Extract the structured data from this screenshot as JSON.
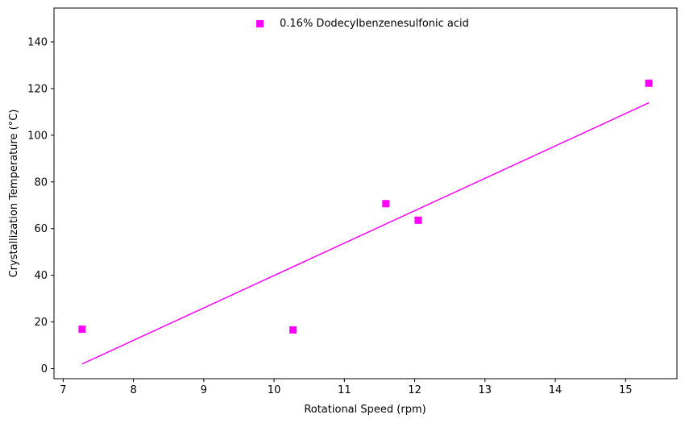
{
  "chart_data": {
    "type": "scatter",
    "xlabel": "Rotational Speed (rpm)",
    "ylabel": "Crystallization Temperature (°C)",
    "xlim": [
      6.87,
      15.73
    ],
    "ylim": [
      -4.3,
      154.5
    ],
    "xticks": [
      7,
      8,
      9,
      10,
      11,
      12,
      13,
      14,
      15
    ],
    "yticks": [
      0,
      20,
      40,
      60,
      80,
      100,
      120,
      140
    ],
    "grid": false,
    "legend_position": "top-center",
    "color": "#ff00ff",
    "series": [
      {
        "name": "0.16% Dodecylbenzenesulfonic acid",
        "marker": "square",
        "x": [
          7.27,
          10.27,
          11.59,
          12.05,
          15.33
        ],
        "y": [
          16.9,
          16.6,
          70.7,
          63.6,
          122.3
        ]
      }
    ],
    "trendline": {
      "x": [
        7.27,
        15.33
      ],
      "y": [
        2.0,
        113.9
      ]
    }
  }
}
